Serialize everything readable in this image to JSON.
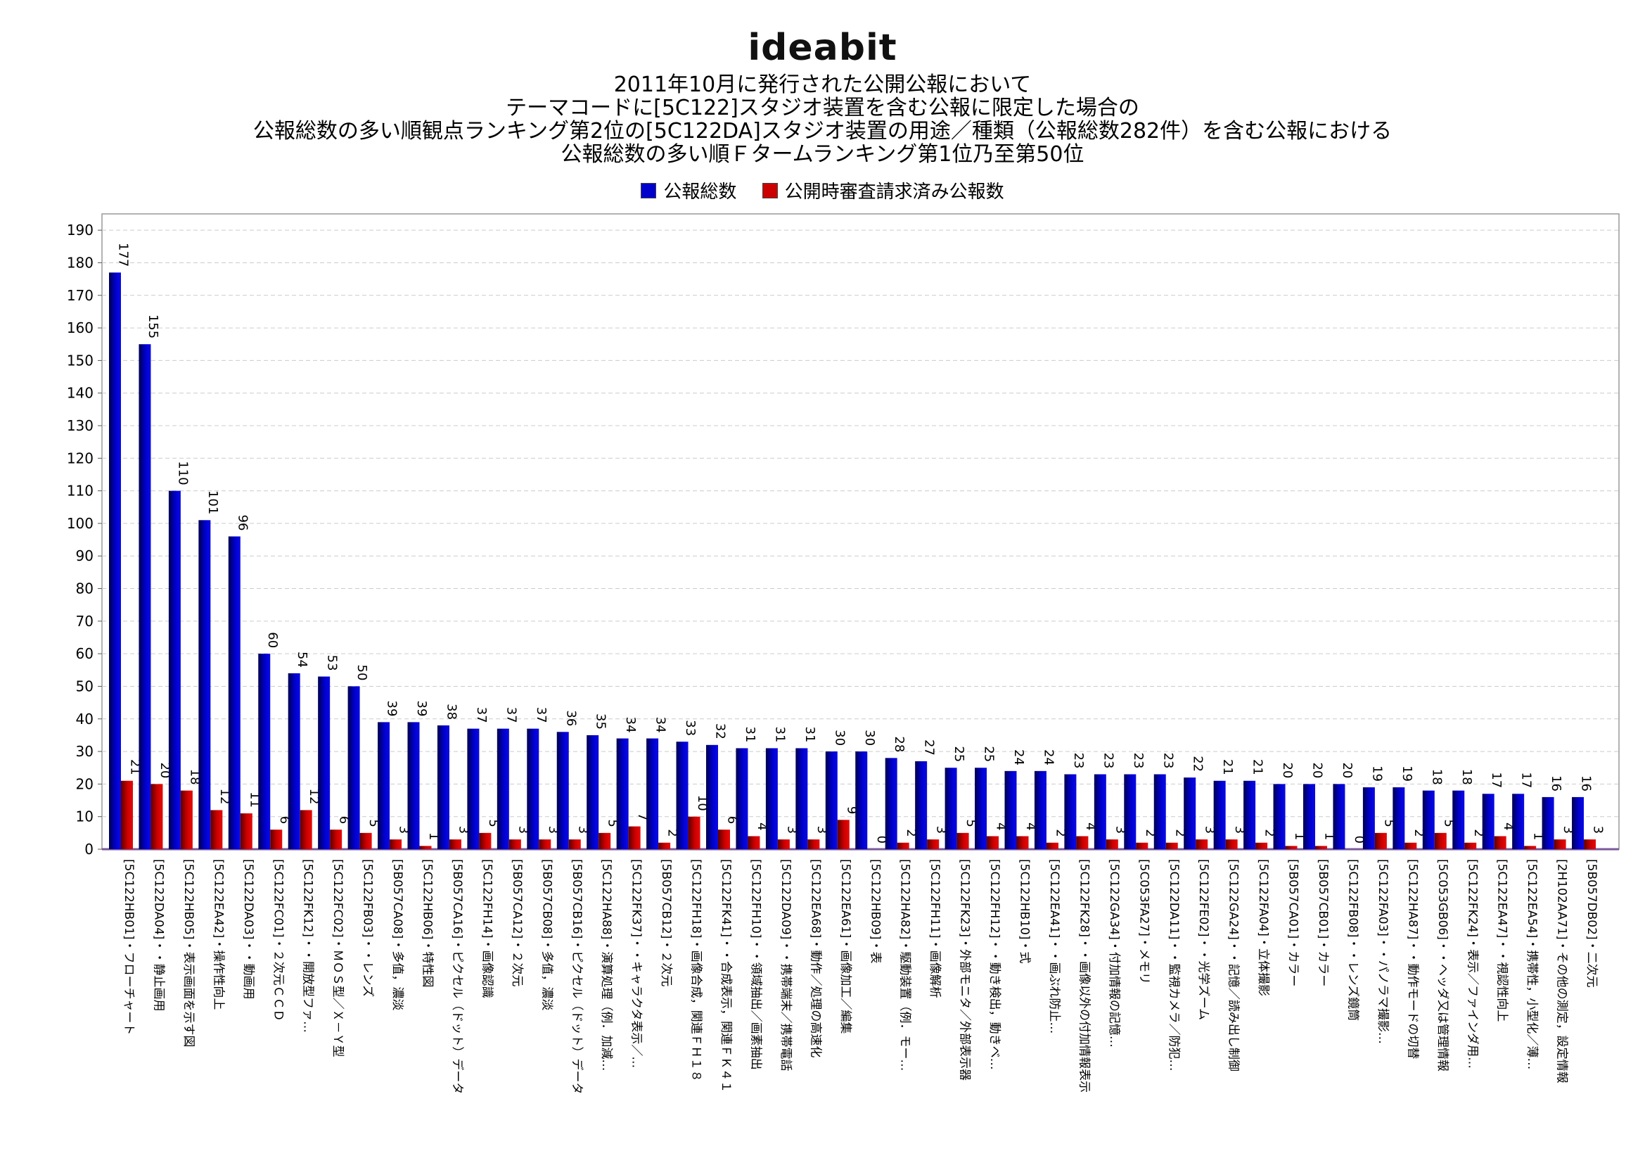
{
  "header": {
    "logo_text": "ideabit",
    "title_lines": [
      "2011年10月に発行された公開公報において",
      "テーマコードに[5C122]スタジオ装置を含む公報に限定した場合の",
      "公報総数の多い順観点ランキング第2位の[5C122DA]スタジオ装置の用途／種類（公報総数282件）を含む公報における",
      "公報総数の多い順Ｆタームランキング第1位乃至第50位"
    ]
  },
  "legend": [
    {
      "name": "公報総数",
      "color": "#0000cc"
    },
    {
      "name": "公開時審査請求済み公報数",
      "color": "#cc0000"
    }
  ],
  "chart_data": {
    "type": "bar",
    "title": "",
    "xlabel": "",
    "ylabel": "",
    "ylim": [
      0,
      190
    ],
    "yticks": [
      0,
      10,
      20,
      30,
      40,
      50,
      60,
      70,
      80,
      90,
      100,
      110,
      120,
      130,
      140,
      150,
      160,
      170,
      180,
      190
    ],
    "grid": true,
    "legend_position": "top-center",
    "categories": [
      "[5C122HB01]・フローチャート",
      "[5C122DA04]・・静止画用",
      "[5C122HB05]・表示画面を示す図",
      "[5C122EA42]・操作性向上",
      "[5C122DA03]・・動画用",
      "[5C122FC01]・２次元ＣＣＤ",
      "[5C122FK12]・・開放型ファ…",
      "[5C122FC02]・ＭＯＳ型／Ｘ－Ｙ型",
      "[5C122FB03]・・レンズ",
      "[5B057CA08]・多值，濃淡",
      "[5C122HB06]・特性図",
      "[5B057CA16]・ピクセル（ドット）データ",
      "[5C122FH14]・画像認識",
      "[5B057CA12]・２次元",
      "[5B057CB08]・多值，濃淡",
      "[5B057CB16]・ピクセル（ドット）データ",
      "[5C122HA88]・演算処理（例．加減…",
      "[5C122FK37]・・キャラクタ表示／…",
      "[5B057CB12]・２次元",
      "[5C122FH18]・画像合成，関連ＦＨ１８",
      "[5C122FK41]・・合成表示，関連ＦＫ４１",
      "[5C122FH10]・・領域抽出／画素抽出",
      "[5C122DA09]・・携帯端末／携帯電話",
      "[5C122EA68]・動作／処理の高速化",
      "[5C122EA61]・画像加工／編集",
      "[5C122HB09]・表",
      "[5C122HA82]・駆動装置（例．モー…",
      "[5C122FH11]・画像解析",
      "[5C122FK23]・外部モニタ／外部表示器",
      "[5C122FH12]・・動き検出，動きベ…",
      "[5C122HB10]・式",
      "[5C122EA41]・・画ぶれ防止…",
      "[5C122FK28]・・画像以外の付加情報表示",
      "[5C122GA34]・付加情報の記憶…",
      "[5C053FA27]・メモリ",
      "[5C122DA11]・・監視カメラ／防犯…",
      "[5C122FE02]・・光学ズーム",
      "[5C122GA24]・・記憶／読み出し制御",
      "[5C122FA04]・立体撮影",
      "[5B057CA01]・カラー",
      "[5B057CB01]・カラー",
      "[5C122FB08]・・レンズ鏡筒",
      "[5C122FA03]・・パノラマ撮影…",
      "[5C122HA87]・・動作モードの切替",
      "[5C053GB06]・・ヘッダ又は管理情報",
      "[5C122FK24]・表示／ファインダ用…",
      "[5C122EA47]・・視認性向上",
      "[5C122EA54]・携帯性，小型化／薄…",
      "[2H102AA71]・その他の測定，設定情報",
      "[5B057DB02]・二次元"
    ],
    "series": [
      {
        "name": "公報総数",
        "values": [
          177,
          155,
          110,
          101,
          96,
          60,
          54,
          53,
          50,
          39,
          39,
          38,
          37,
          37,
          37,
          36,
          35,
          34,
          34,
          33,
          32,
          31,
          31,
          31,
          30,
          30,
          28,
          27,
          25,
          25,
          24,
          24,
          23,
          23,
          23,
          23,
          22,
          21,
          21,
          20,
          20,
          20,
          19,
          19,
          18,
          18,
          17,
          17,
          16,
          16
        ]
      },
      {
        "name": "公開時審査請求済み公報数",
        "values": [
          21,
          20,
          18,
          12,
          11,
          6,
          12,
          6,
          5,
          3,
          1,
          3,
          5,
          3,
          3,
          3,
          5,
          7,
          2,
          10,
          6,
          4,
          3,
          3,
          9,
          0,
          2,
          3,
          5,
          4,
          4,
          2,
          4,
          3,
          2,
          2,
          3,
          3,
          2,
          1,
          1,
          0,
          5,
          2,
          5,
          2,
          4,
          1,
          3,
          3
        ]
      }
    ]
  }
}
